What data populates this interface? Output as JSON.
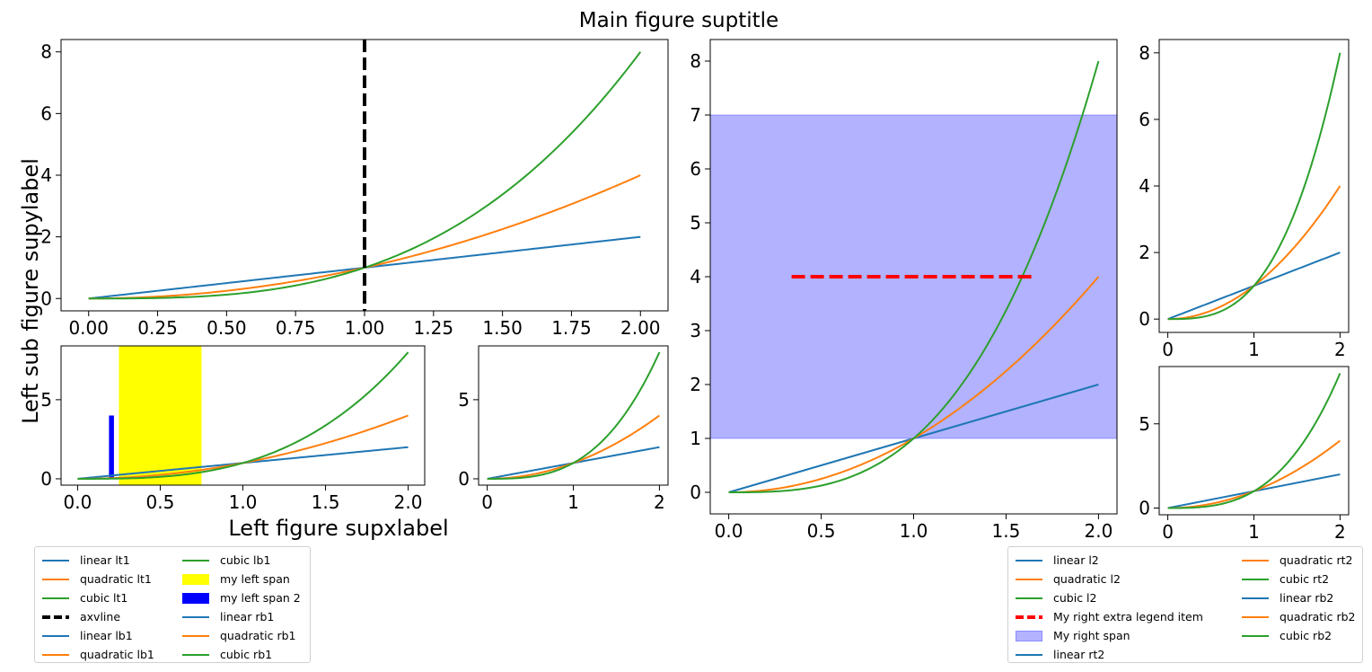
{
  "figure": {
    "suptitle": "Main figure suptitle",
    "left_supxlabel": "Left figure supxlabel",
    "left_supylabel": "Left sub figure supylabel"
  },
  "colors": {
    "linear": "#1f77b4",
    "quadratic": "#ff7f0e",
    "cubic": "#2ca02c",
    "axvline": "#000000",
    "left_span": "#ffff00",
    "left_span_2": "#0000ff",
    "right_extra": "#ff0000",
    "right_span": "#b3b3ff"
  },
  "chart_data": [
    {
      "id": "lt1",
      "type": "line",
      "series": [
        {
          "name": "linear lt1",
          "kind": "linear"
        },
        {
          "name": "quadratic lt1",
          "kind": "quadratic"
        },
        {
          "name": "cubic lt1",
          "kind": "cubic"
        }
      ],
      "function_domain": [
        0,
        2
      ],
      "xlim": [
        -0.1,
        2.1
      ],
      "ylim": [
        -0.4,
        8.4
      ],
      "xticks": [
        "0.00",
        "0.25",
        "0.50",
        "0.75",
        "1.00",
        "1.25",
        "1.50",
        "1.75",
        "2.00"
      ],
      "yticks": [
        "0",
        "2",
        "4",
        "6",
        "8"
      ],
      "axvline": {
        "x": 1,
        "name": "axvline"
      }
    },
    {
      "id": "lb1",
      "type": "line",
      "series": [
        {
          "name": "linear lb1",
          "kind": "linear"
        },
        {
          "name": "quadratic lb1",
          "kind": "quadratic"
        },
        {
          "name": "cubic lb1",
          "kind": "cubic"
        }
      ],
      "function_domain": [
        0,
        2
      ],
      "xlim": [
        -0.1,
        2.1
      ],
      "ylim": [
        -0.4,
        8.4
      ],
      "xticks": [
        "0.0",
        "0.5",
        "1.0",
        "1.5",
        "2.0"
      ],
      "yticks": [
        "0",
        "5"
      ],
      "spans": [
        {
          "name": "my left span",
          "x0": 0.25,
          "x1": 0.75,
          "y0": -0.4,
          "y1": 8.4,
          "color": "yellow"
        },
        {
          "name": "my left span 2",
          "x0": 0.19,
          "x1": 0.22,
          "y0": 0.0,
          "y1": 4.0,
          "color": "blue"
        }
      ]
    },
    {
      "id": "rb1",
      "type": "line",
      "series": [
        {
          "name": "linear rb1",
          "kind": "linear"
        },
        {
          "name": "quadratic rb1",
          "kind": "quadratic"
        },
        {
          "name": "cubic rb1",
          "kind": "cubic"
        }
      ],
      "function_domain": [
        0,
        2
      ],
      "xlim": [
        -0.1,
        2.1
      ],
      "ylim": [
        -0.4,
        8.4
      ],
      "xticks": [
        "0",
        "1",
        "2"
      ],
      "yticks": [
        "0",
        "5"
      ]
    },
    {
      "id": "l2",
      "type": "line",
      "series": [
        {
          "name": "linear l2",
          "kind": "linear"
        },
        {
          "name": "quadratic l2",
          "kind": "quadratic"
        },
        {
          "name": "cubic l2",
          "kind": "cubic"
        }
      ],
      "function_domain": [
        0,
        2
      ],
      "xlim": [
        -0.1,
        2.1
      ],
      "ylim": [
        -0.4,
        8.4
      ],
      "xticks": [
        "0.0",
        "0.5",
        "1.0",
        "1.5",
        "2.0"
      ],
      "yticks": [
        "0",
        "1",
        "2",
        "3",
        "4",
        "5",
        "6",
        "7",
        "8"
      ],
      "hspan": {
        "name": "My right span",
        "y0": 1,
        "y1": 7
      },
      "extra_line": {
        "name": "My right extra legend item",
        "x0": 0.34,
        "x1": 1.66,
        "y": 4
      }
    },
    {
      "id": "rt2",
      "type": "line",
      "series": [
        {
          "name": "linear rt2",
          "kind": "linear"
        },
        {
          "name": "quadratic rt2",
          "kind": "quadratic"
        },
        {
          "name": "cubic rt2",
          "kind": "cubic"
        }
      ],
      "function_domain": [
        0,
        2
      ],
      "xlim": [
        -0.1,
        2.1
      ],
      "ylim": [
        -0.4,
        8.4
      ],
      "xticks": [
        "0",
        "1",
        "2"
      ],
      "yticks": [
        "0",
        "2",
        "4",
        "6",
        "8"
      ]
    },
    {
      "id": "rb2",
      "type": "line",
      "series": [
        {
          "name": "linear rb2",
          "kind": "linear"
        },
        {
          "name": "quadratic rb2",
          "kind": "quadratic"
        },
        {
          "name": "cubic rb2",
          "kind": "cubic"
        }
      ],
      "function_domain": [
        0,
        2
      ],
      "xlim": [
        -0.1,
        2.1
      ],
      "ylim": [
        -0.4,
        8.4
      ],
      "xticks": [
        "0",
        "1",
        "2"
      ],
      "yticks": [
        "0",
        "5"
      ]
    }
  ],
  "legends": {
    "left": {
      "columns": 2,
      "items": [
        {
          "label": "linear lt1",
          "handle": "line",
          "color": "#1f77b4"
        },
        {
          "label": "quadratic lt1",
          "handle": "line",
          "color": "#ff7f0e"
        },
        {
          "label": "cubic lt1",
          "handle": "line",
          "color": "#2ca02c"
        },
        {
          "label": "axvline",
          "handle": "dash",
          "color": "#000000"
        },
        {
          "label": "linear lb1",
          "handle": "line",
          "color": "#1f77b4"
        },
        {
          "label": "quadratic lb1",
          "handle": "line",
          "color": "#ff7f0e"
        },
        {
          "label": "cubic lb1",
          "handle": "line",
          "color": "#2ca02c"
        },
        {
          "label": "my left span",
          "handle": "patch",
          "color": "#ffff00"
        },
        {
          "label": "my left span 2",
          "handle": "patch",
          "color": "#0000ff"
        },
        {
          "label": "linear rb1",
          "handle": "line",
          "color": "#1f77b4"
        },
        {
          "label": "quadratic rb1",
          "handle": "line",
          "color": "#ff7f0e"
        },
        {
          "label": "cubic rb1",
          "handle": "line",
          "color": "#2ca02c"
        }
      ]
    },
    "right": {
      "columns": 2,
      "items": [
        {
          "label": "linear l2",
          "handle": "line",
          "color": "#1f77b4"
        },
        {
          "label": "quadratic l2",
          "handle": "line",
          "color": "#ff7f0e"
        },
        {
          "label": "cubic l2",
          "handle": "line",
          "color": "#2ca02c"
        },
        {
          "label": "My right extra legend item",
          "handle": "dash",
          "color": "#ff0000"
        },
        {
          "label": "My right span",
          "handle": "patch",
          "color": "#b3b3ff"
        },
        {
          "label": "linear rt2",
          "handle": "line",
          "color": "#1f77b4"
        },
        {
          "label": "quadratic rt2",
          "handle": "line",
          "color": "#ff7f0e"
        },
        {
          "label": "cubic rt2",
          "handle": "line",
          "color": "#2ca02c"
        },
        {
          "label": "linear rb2",
          "handle": "line",
          "color": "#1f77b4"
        },
        {
          "label": "quadratic rb2",
          "handle": "line",
          "color": "#ff7f0e"
        },
        {
          "label": "cubic rb2",
          "handle": "line",
          "color": "#2ca02c"
        }
      ]
    }
  }
}
